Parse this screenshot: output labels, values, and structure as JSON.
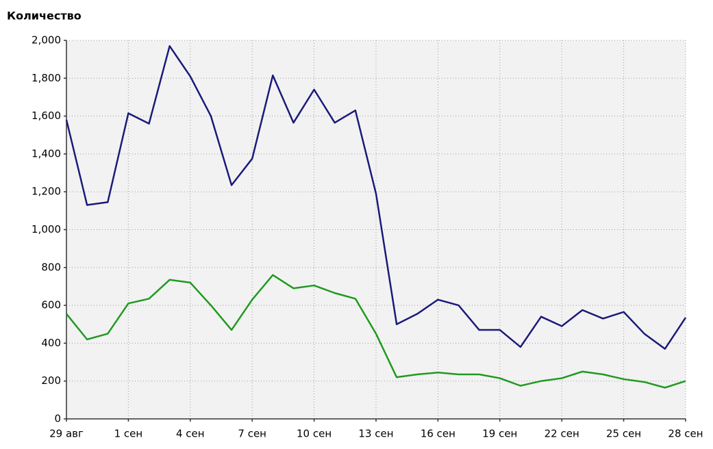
{
  "chart_data": {
    "type": "line",
    "title": "Количество",
    "categories": [
      "29 авг",
      null,
      null,
      "1 сен",
      null,
      null,
      "4 сен",
      null,
      null,
      "7 сен",
      null,
      null,
      "10 сен",
      null,
      null,
      "13 сен",
      null,
      null,
      "16 сен",
      null,
      null,
      "19 сен",
      null,
      null,
      "22 сен",
      null,
      null,
      "25 сен",
      null,
      null,
      "28 сен"
    ],
    "series": [
      {
        "color": "#1a1a7a",
        "values": [
          1580,
          1130,
          1145,
          1615,
          1560,
          1970,
          1810,
          1600,
          1235,
          1375,
          1815,
          1565,
          1740,
          1565,
          1630,
          1190,
          500,
          555,
          630,
          600,
          470,
          470,
          380,
          540,
          490,
          575,
          530,
          565,
          450,
          370,
          535
        ]
      },
      {
        "color": "#1f9a1f",
        "values": [
          555,
          420,
          450,
          610,
          635,
          735,
          720,
          600,
          470,
          630,
          760,
          690,
          705,
          665,
          635,
          450,
          220,
          235,
          245,
          235,
          235,
          215,
          175,
          200,
          215,
          250,
          235,
          210,
          195,
          165,
          200
        ]
      }
    ],
    "ylim": [
      0,
      2000
    ],
    "yticks": [
      0,
      200,
      400,
      600,
      800,
      {
        "value": 1000,
        "label": "1,000"
      },
      {
        "value": 1200,
        "label": "1,200"
      },
      {
        "value": 1400,
        "label": "1,400"
      },
      {
        "value": 1600,
        "label": "1,600"
      },
      {
        "value": 1800,
        "label": "1,800"
      },
      {
        "value": 2000,
        "label": "2,000"
      }
    ],
    "grid": true
  }
}
